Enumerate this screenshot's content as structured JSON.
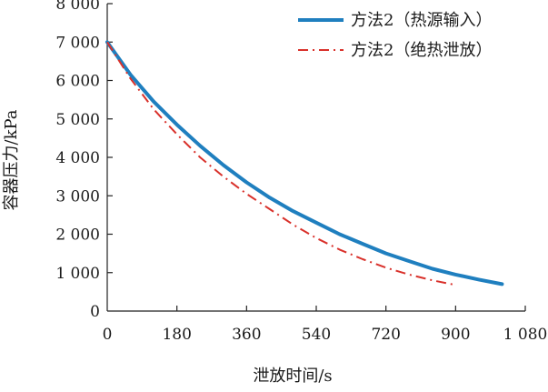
{
  "chart_data": {
    "type": "line",
    "title": "",
    "xlabel": "泄放时间/s",
    "ylabel": "容器压力/kPa",
    "xlim": [
      0,
      1080
    ],
    "ylim": [
      0,
      8000
    ],
    "x_ticks": [
      0,
      180,
      360,
      540,
      720,
      900,
      1080
    ],
    "x_tick_labels": [
      "0",
      "180",
      "360",
      "540",
      "720",
      "900",
      "1 080"
    ],
    "y_ticks": [
      0,
      1000,
      2000,
      3000,
      4000,
      5000,
      6000,
      7000,
      8000
    ],
    "y_tick_labels": [
      "0",
      "1 000",
      "2 000",
      "3 000",
      "4 000",
      "5 000",
      "6 000",
      "7 000",
      "8 000"
    ],
    "grid": false,
    "legend_position": "top-right",
    "series": [
      {
        "name": "方法2（热源输入）",
        "color": "#1f7fbf",
        "style": "solid",
        "x": [
          0,
          60,
          120,
          180,
          240,
          300,
          360,
          420,
          480,
          540,
          600,
          660,
          720,
          780,
          840,
          900,
          960,
          1020
        ],
        "y": [
          7000,
          6150,
          5450,
          4850,
          4300,
          3800,
          3350,
          2950,
          2600,
          2300,
          2000,
          1750,
          1500,
          1300,
          1100,
          950,
          820,
          700
        ]
      },
      {
        "name": "方法2（绝热泄放）",
        "color": "#d9312b",
        "style": "dashdot",
        "x": [
          0,
          60,
          120,
          180,
          240,
          300,
          360,
          420,
          480,
          540,
          600,
          660,
          720,
          780,
          840,
          900
        ],
        "y": [
          7000,
          6050,
          5250,
          4600,
          4000,
          3500,
          3050,
          2650,
          2250,
          1900,
          1600,
          1350,
          1130,
          950,
          800,
          680
        ]
      }
    ]
  }
}
